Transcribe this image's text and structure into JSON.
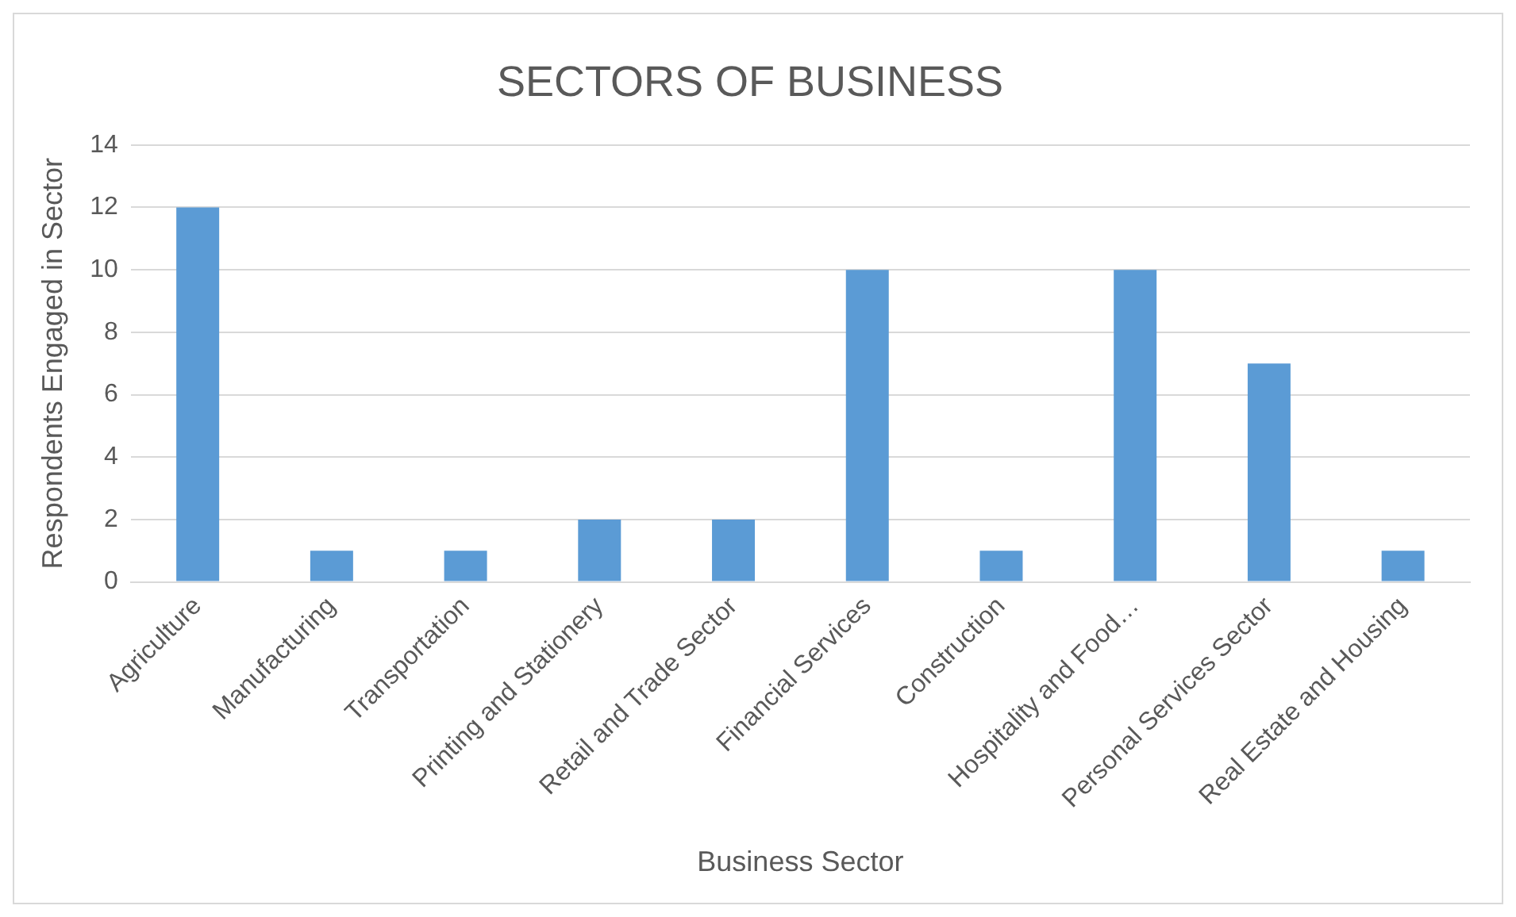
{
  "chart_data": {
    "type": "bar",
    "title": "SECTORS OF BUSINESS",
    "xlabel": "Business Sector",
    "ylabel": "Respondents Engaged in Sector",
    "categories": [
      "Agriculture",
      "Manufacturing",
      "Transportation",
      "Printing and Stationery",
      "Retail and Trade Sector",
      "Financial Services",
      "Construction",
      "Hospitality and Food…",
      "Personal Services Sector",
      "Real Estate and Housing"
    ],
    "values": [
      12,
      1,
      1,
      2,
      2,
      10,
      1,
      10,
      7,
      1
    ],
    "color": "#5b9bd5",
    "ylim": [
      0,
      14
    ],
    "yticks": [
      0,
      2,
      4,
      6,
      8,
      10,
      12,
      14
    ],
    "grid": "y"
  }
}
